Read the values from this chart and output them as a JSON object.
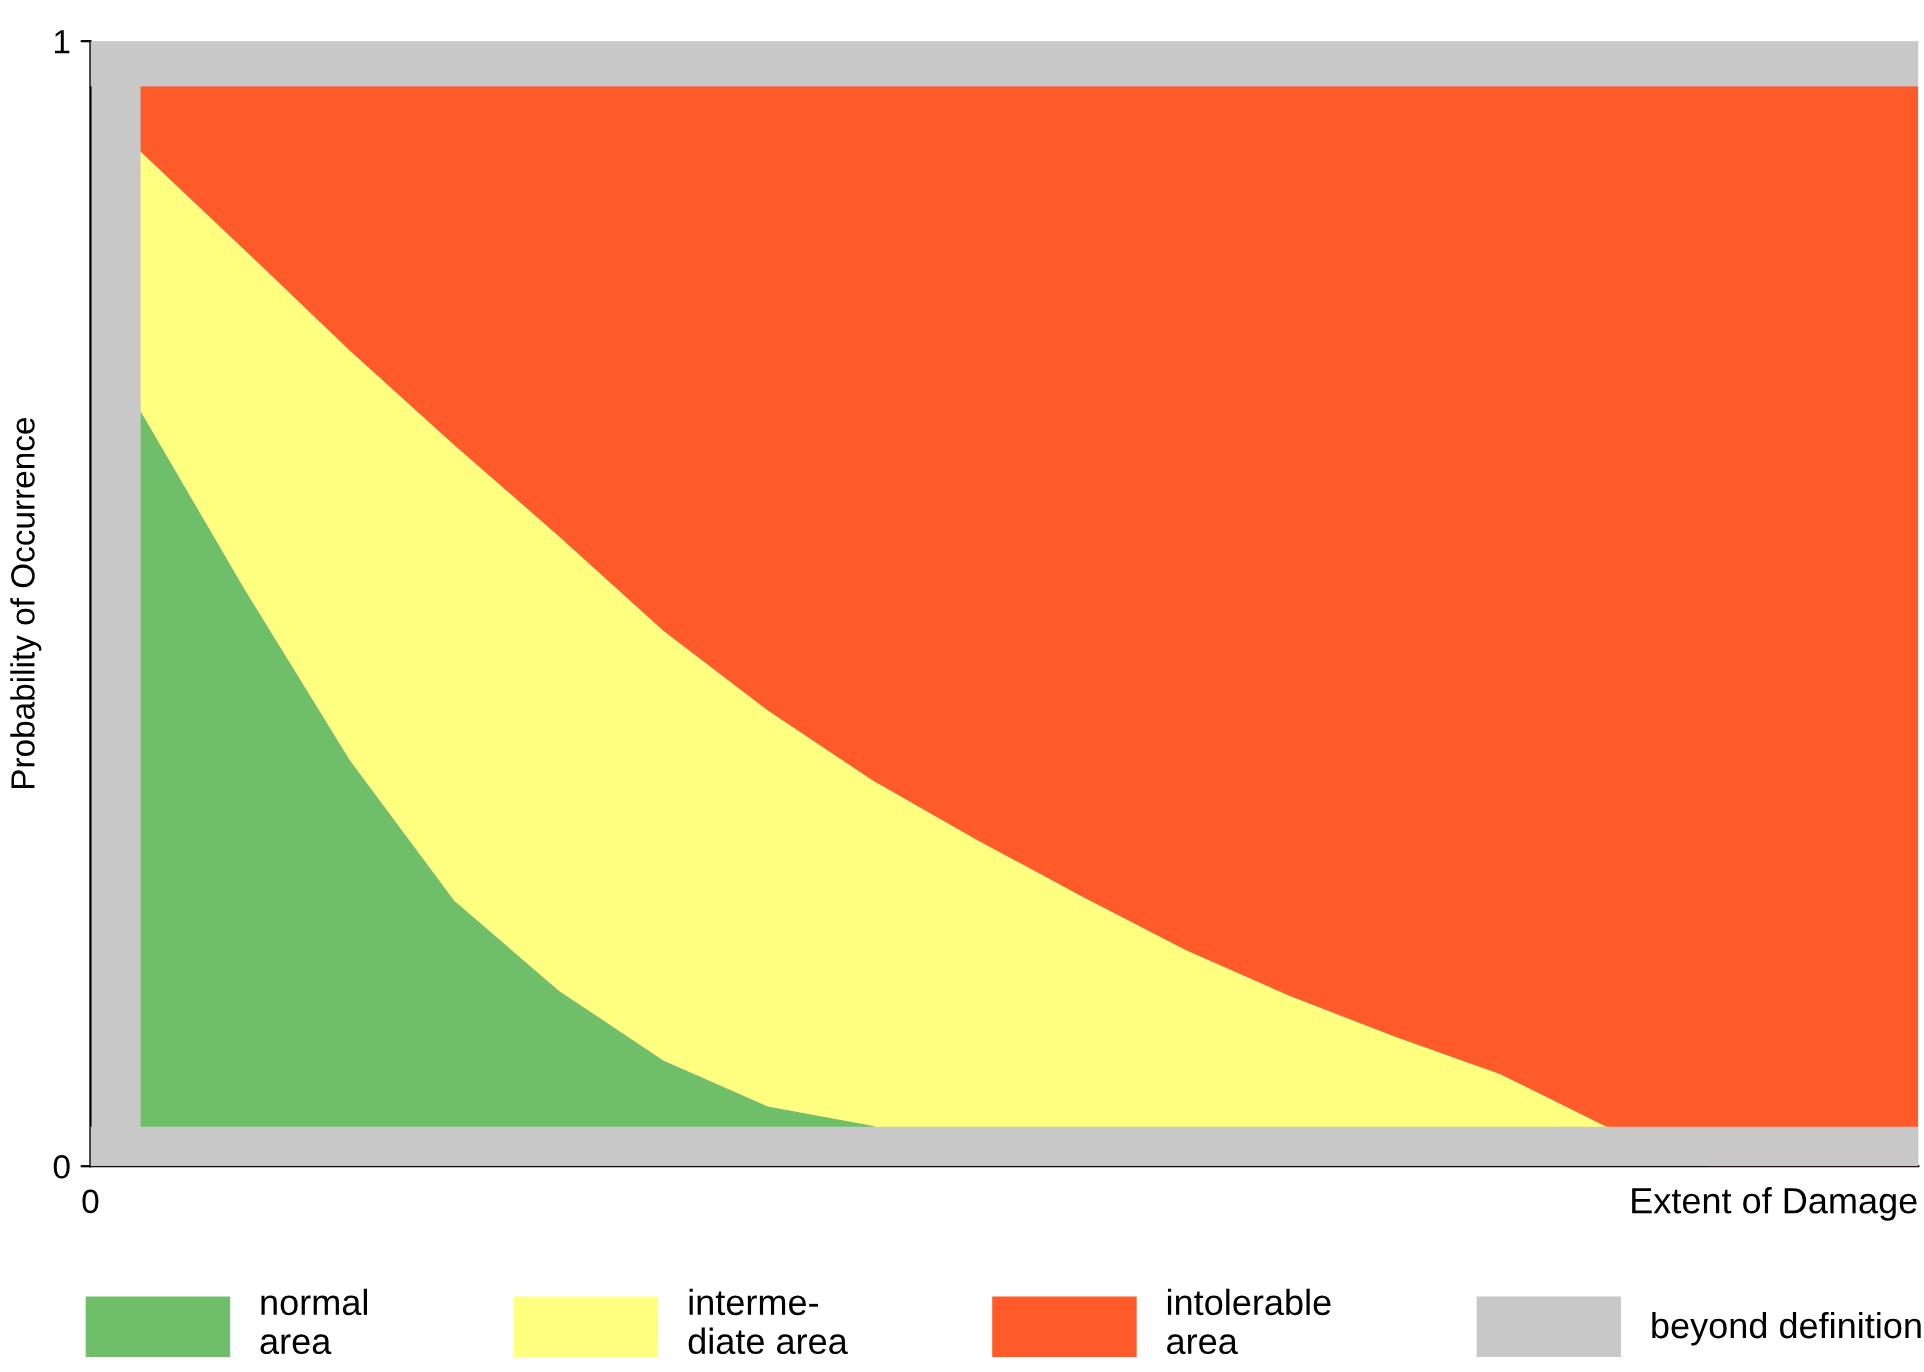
{
  "chart_data": {
    "type": "area",
    "xlabel": "Extent of Damage",
    "ylabel": "Probability of Occurrence",
    "annotations": [
      "0"
    ],
    "categories": [
      null,
      null,
      null,
      null,
      null,
      null,
      null,
      null,
      null,
      null,
      null,
      null,
      null,
      null,
      null,
      null,
      null,
      null
    ],
    "ylim": [
      0,
      1
    ],
    "yticks": [
      0,
      1
    ],
    "series": [
      {
        "name": "normal\narea",
        "color": "#6fbf6a",
        "values": [
          0.671,
          0.512,
          0.361,
          0.236,
          0.156,
          0.094,
          0.053,
          0.036,
          0,
          0,
          0,
          0,
          0,
          0,
          0,
          0,
          0,
          0
        ]
      },
      {
        "name": "interme-\ndiate area",
        "color": "#ffff80",
        "values": [
          0.231,
          0.302,
          0.364,
          0.405,
          0.404,
          0.382,
          0.352,
          0.307,
          0.29,
          0.24,
          0.192,
          0.151,
          0.115,
          0.082,
          0.036,
          0,
          0,
          0
        ]
      },
      {
        "name": "intolerable\narea",
        "color": "#ff5a2a",
        "values": [
          0.058,
          0.146,
          0.235,
          0.319,
          0.4,
          0.484,
          0.555,
          0.617,
          0.67,
          0.72,
          0.768,
          0.809,
          0.845,
          0.878,
          0.924,
          0.96,
          0.96,
          0.96
        ]
      }
    ],
    "stacked": true,
    "bands": [
      {
        "axis": "y",
        "from": 0,
        "to": 0.035,
        "label": "beyond definition",
        "color": "#c8c8c8"
      },
      {
        "axis": "y",
        "from": 0.96,
        "to": 1,
        "color": "#c8c8c8"
      }
    ],
    "legend": "bottom",
    "grid": false
  }
}
